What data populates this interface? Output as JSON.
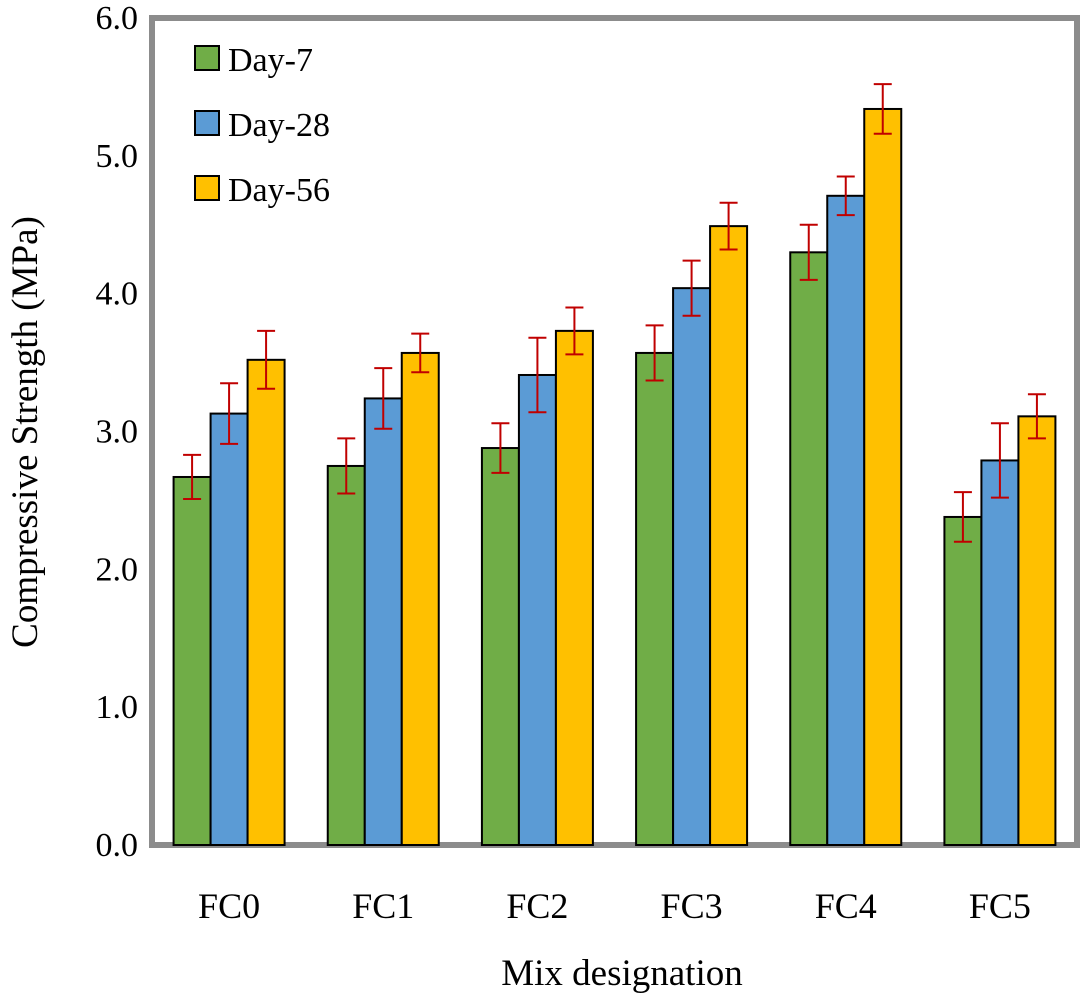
{
  "chart_data": {
    "type": "bar",
    "title": "",
    "xlabel": "Mix designation",
    "ylabel": "Compressive Strength (MPa)",
    "ylim": [
      0,
      6
    ],
    "yticks": [
      "0.0",
      "1.0",
      "2.0",
      "3.0",
      "4.0",
      "5.0",
      "6.0"
    ],
    "categories": [
      "FC0",
      "FC1",
      "FC2",
      "FC3",
      "FC4",
      "FC5"
    ],
    "grid": false,
    "legend_position": "top-left",
    "error_bar_color": "#c00000",
    "series": [
      {
        "name": "Day-7",
        "color": "#70ad47",
        "values": [
          2.67,
          2.75,
          2.88,
          3.57,
          4.3,
          2.38
        ],
        "errors": [
          0.16,
          0.2,
          0.18,
          0.2,
          0.2,
          0.18
        ]
      },
      {
        "name": "Day-28",
        "color": "#5b9bd5",
        "values": [
          3.13,
          3.24,
          3.41,
          4.04,
          4.71,
          2.79
        ],
        "errors": [
          0.22,
          0.22,
          0.27,
          0.2,
          0.14,
          0.27
        ]
      },
      {
        "name": "Day-56",
        "color": "#ffc000",
        "values": [
          3.52,
          3.57,
          3.73,
          4.49,
          5.34,
          3.11
        ],
        "errors": [
          0.21,
          0.14,
          0.17,
          0.17,
          0.18,
          0.16
        ]
      }
    ]
  }
}
